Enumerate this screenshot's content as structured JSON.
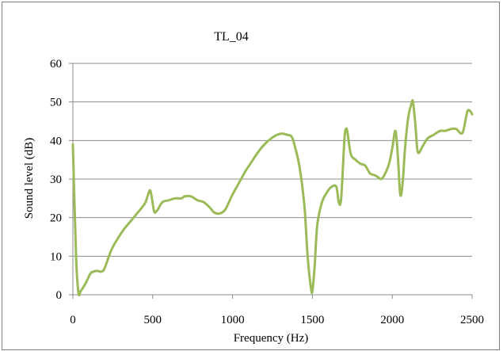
{
  "chart_data": {
    "type": "line",
    "title": "TL_04",
    "xlabel": "Frequency (Hz)",
    "ylabel": "Sound level (dB)",
    "xlim": [
      0,
      2500
    ],
    "ylim": [
      0,
      60
    ],
    "xticks": [
      0,
      500,
      1000,
      1500,
      2000,
      2500
    ],
    "yticks": [
      0,
      10,
      20,
      30,
      40,
      50,
      60
    ],
    "grid": "horizontal",
    "legend": "none",
    "line_color": "#9bbb59",
    "series": [
      {
        "x": [
          0,
          20,
          35,
          50,
          80,
          110,
          130,
          150,
          180,
          200,
          240,
          280,
          320,
          360,
          400,
          430,
          455,
          475,
          485,
          495,
          510,
          530,
          560,
          600,
          640,
          680,
          700,
          740,
          780,
          820,
          860,
          880,
          910,
          940,
          960,
          1000,
          1040,
          1080,
          1120,
          1160,
          1200,
          1240,
          1280,
          1310,
          1340,
          1370,
          1390,
          1420,
          1450,
          1470,
          1490,
          1500,
          1515,
          1530,
          1560,
          1590,
          1620,
          1650,
          1665,
          1680,
          1700,
          1710,
          1720,
          1740,
          1770,
          1800,
          1830,
          1860,
          1890,
          1910,
          1930,
          1950,
          1980,
          2000,
          2020,
          2035,
          2050,
          2065,
          2080,
          2100,
          2120,
          2130,
          2145,
          2160,
          2190,
          2220,
          2260,
          2300,
          2330,
          2370,
          2400,
          2440,
          2470,
          2490,
          2500
        ],
        "y": [
          39,
          10,
          0.5,
          1,
          3,
          5.5,
          6,
          6.2,
          6,
          7,
          11.5,
          14.5,
          17,
          19,
          21,
          22.5,
          24,
          26.5,
          27,
          25,
          21.5,
          22,
          24,
          24.5,
          25,
          25,
          25.5,
          25.5,
          24.5,
          24,
          22.5,
          21.5,
          21,
          21.5,
          22.5,
          26,
          29,
          32,
          34.5,
          37,
          39,
          40.5,
          41.5,
          41.8,
          41.5,
          41,
          38.5,
          33,
          23,
          10,
          2,
          1,
          8,
          18,
          24,
          26.5,
          28,
          28,
          24,
          25,
          40,
          43,
          42,
          36.5,
          35,
          34,
          33.5,
          31.5,
          31,
          30.5,
          30,
          31,
          34,
          38,
          42.5,
          36,
          26,
          29,
          38,
          46,
          49.5,
          50,
          44,
          37,
          38.5,
          40.5,
          41.5,
          42.5,
          42.5,
          43,
          43,
          42,
          47.5,
          47.5,
          46.8
        ]
      }
    ]
  }
}
